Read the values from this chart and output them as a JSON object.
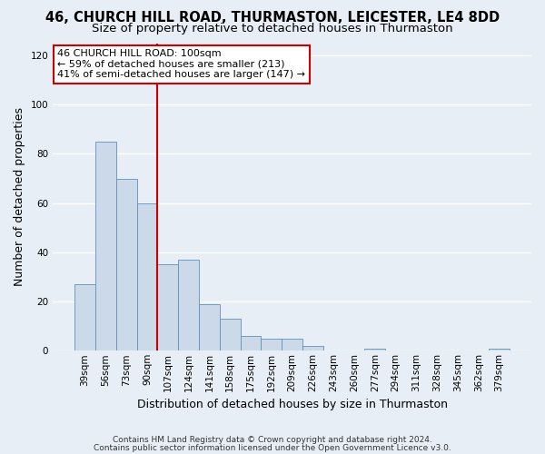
{
  "title1": "46, CHURCH HILL ROAD, THURMASTON, LEICESTER, LE4 8DD",
  "title2": "Size of property relative to detached houses in Thurmaston",
  "xlabel": "Distribution of detached houses by size in Thurmaston",
  "ylabel": "Number of detached properties",
  "footnote1": "Contains HM Land Registry data © Crown copyright and database right 2024.",
  "footnote2": "Contains public sector information licensed under the Open Government Licence v3.0.",
  "bar_labels": [
    "39sqm",
    "56sqm",
    "73sqm",
    "90sqm",
    "107sqm",
    "124sqm",
    "141sqm",
    "158sqm",
    "175sqm",
    "192sqm",
    "209sqm",
    "226sqm",
    "243sqm",
    "260sqm",
    "277sqm",
    "294sqm",
    "311sqm",
    "328sqm",
    "345sqm",
    "362sqm",
    "379sqm"
  ],
  "bar_values": [
    27,
    85,
    70,
    60,
    35,
    37,
    19,
    13,
    6,
    5,
    5,
    2,
    0,
    0,
    1,
    0,
    0,
    0,
    0,
    0,
    1
  ],
  "bar_color": "#ccd9e8",
  "bar_edge_color": "#6090bb",
  "annotation_box_text": "46 CHURCH HILL ROAD: 100sqm\n← 59% of detached houses are smaller (213)\n41% of semi-detached houses are larger (147) →",
  "red_line_color": "#cc0000",
  "box_edge_color": "#cc0000",
  "red_line_x": 3.5,
  "ylim": [
    0,
    125
  ],
  "yticks": [
    0,
    20,
    40,
    60,
    80,
    100,
    120
  ],
  "bg_color": "#e8eef5",
  "plot_bg_color": "#e8eef5",
  "grid_color": "#ffffff",
  "title1_fontsize": 10.5,
  "title2_fontsize": 9.5,
  "annotation_fontsize": 8,
  "axis_label_fontsize": 9,
  "tick_fontsize": 7.5,
  "footnote_fontsize": 6.5,
  "xlabel_fontsize": 9
}
